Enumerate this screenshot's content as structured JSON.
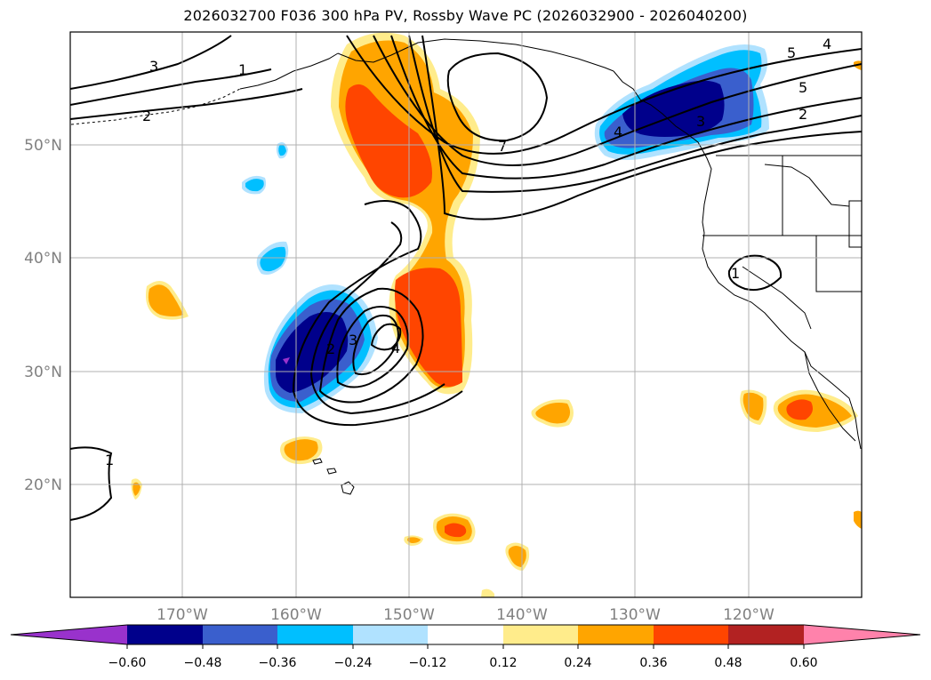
{
  "title": "2026032700 F036 300 hPa PV, Rossby Wave PC (2026032900 - 2026040200)",
  "map": {
    "lat_labels": [
      "50°N",
      "40°N",
      "30°N",
      "20°N"
    ],
    "lon_labels": [
      "170°W",
      "160°W",
      "150°W",
      "140°W",
      "130°W",
      "120°W"
    ],
    "contour_labels": [
      "3",
      "1",
      "2",
      "7",
      "5",
      "4",
      "5",
      "2",
      "3",
      "4",
      "1",
      "1",
      "2",
      "3",
      "4"
    ]
  },
  "colorbar": {
    "colors": [
      "#9932cc",
      "#00008b",
      "#3a5fcd",
      "#00bfff",
      "#b0e2ff",
      "#ffffff",
      "#ffec8b",
      "#ffa500",
      "#ff4500",
      "#b22222",
      "#ff82ab"
    ],
    "tick_labels": [
      "−0.60",
      "−0.48",
      "−0.36",
      "−0.24",
      "−0.12",
      "0.12",
      "0.24",
      "0.36",
      "0.48",
      "0.60"
    ]
  }
}
